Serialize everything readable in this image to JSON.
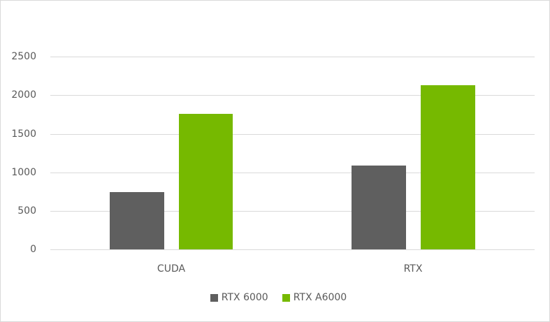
{
  "chart_data": {
    "type": "bar",
    "title": "",
    "xlabel": "",
    "ylabel": "",
    "categories": [
      "CUDA",
      "RTX"
    ],
    "series": [
      {
        "name": "RTX 6000",
        "color": "#5f5f5f",
        "values": [
          743,
          1087
        ]
      },
      {
        "name": "RTX A6000",
        "color": "#76b900",
        "values": [
          1757,
          2128
        ]
      }
    ],
    "ylim": [
      0,
      2500
    ],
    "yticks": [
      "0",
      "500",
      "1000",
      "1500",
      "2000",
      "2500"
    ],
    "grid": true,
    "legend_position": "bottom"
  },
  "axis": {
    "yticks": [
      "2500",
      "2000",
      "1500",
      "1000",
      "500",
      "0"
    ],
    "categories": [
      "CUDA",
      "RTX"
    ]
  },
  "legend": {
    "items": [
      {
        "label": "RTX 6000",
        "color": "#5f5f5f"
      },
      {
        "label": "RTX A6000",
        "color": "#76b900"
      }
    ]
  }
}
